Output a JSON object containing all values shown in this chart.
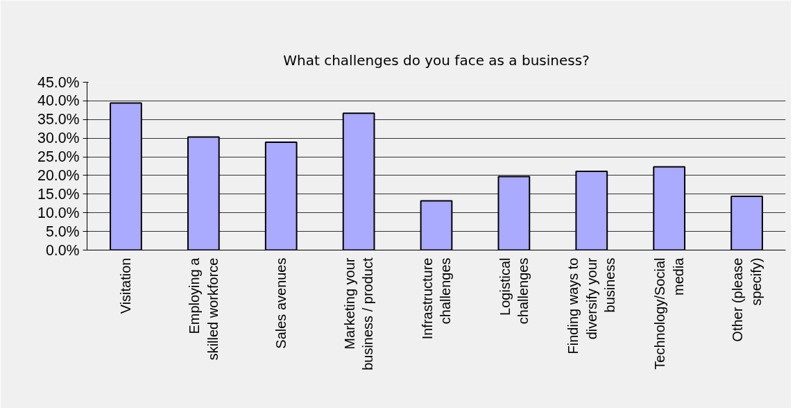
{
  "chart_data": {
    "type": "bar",
    "title": "What challenges do you face as a business?",
    "categories": [
      "Visitation",
      "Employing a skilled workforce",
      "Sales avenues",
      "Marketing your business / product",
      "Infrastructure challenges",
      "Logistical challenges",
      "Finding ways to diversify your business",
      "Technology/Social media",
      "Other (please specify)"
    ],
    "values": [
      39.4,
      30.3,
      28.9,
      36.7,
      13.2,
      19.7,
      21.1,
      22.3,
      14.4
    ],
    "color": "#aaaaff",
    "ylim": [
      0,
      45
    ],
    "yticks": [
      {
        "value": 0,
        "label": "0.0%"
      },
      {
        "value": 5,
        "label": "5.0%"
      },
      {
        "value": 10,
        "label": "10.0%"
      },
      {
        "value": 15,
        "label": "15.0%"
      },
      {
        "value": 20,
        "label": "20.0%"
      },
      {
        "value": 25,
        "label": "25.0%"
      },
      {
        "value": 30,
        "label": "30.0%"
      },
      {
        "value": 35,
        "label": "35.0%"
      },
      {
        "value": 40,
        "label": "40.0%"
      },
      {
        "value": 45,
        "label": "45.0%"
      }
    ],
    "grid": "y"
  }
}
